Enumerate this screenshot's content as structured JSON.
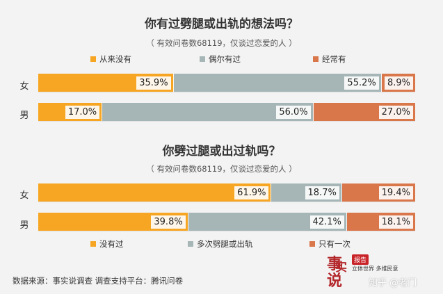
{
  "charts": [
    {
      "title": "你有过劈腿或出轨的想法吗？",
      "subtitle": "（ 有效问卷数68119，仅谈过恋爱的人 ）",
      "legend": [
        "从来没有",
        "偶尔有过",
        "经常有"
      ]
    },
    {
      "title": "你劈过腿或出过轨吗？",
      "subtitle": "（ 有效问卷数68119，仅谈过恋爱的人 ）",
      "legend": [
        "没有过",
        "多次劈腿或出轨",
        "只有一次"
      ]
    }
  ],
  "colors": {
    "series1": "#f6a623",
    "series2": "#a6b6b7",
    "series3": "#d9774a"
  },
  "chart_data": [
    {
      "type": "bar",
      "orientation": "horizontal",
      "stacked": true,
      "title": "你有过劈腿或出轨的想法吗？",
      "subtitle": "（ 有效问卷数68119，仅谈过恋爱的人 ）",
      "categories": [
        "女",
        "男"
      ],
      "series": [
        {
          "name": "从来没有",
          "values": [
            35.9,
            17.0
          ],
          "labels": [
            "35.9%",
            "17.0%"
          ]
        },
        {
          "name": "偶尔有过",
          "values": [
            55.2,
            56.0
          ],
          "labels": [
            "55.2%",
            "56.0%"
          ]
        },
        {
          "name": "经常有",
          "values": [
            8.9,
            27.0
          ],
          "labels": [
            "8.9%",
            "27.0%"
          ]
        }
      ],
      "legend_position": "top"
    },
    {
      "type": "bar",
      "orientation": "horizontal",
      "stacked": true,
      "title": "你劈过腿或出过轨吗？",
      "subtitle": "（ 有效问卷数68119，仅谈过恋爱的人 ）",
      "categories": [
        "女",
        "男"
      ],
      "series": [
        {
          "name": "没有过",
          "values": [
            61.9,
            39.8
          ],
          "labels": [
            "61.9%",
            "39.8%"
          ]
        },
        {
          "name": "多次劈腿或出轨",
          "values": [
            18.7,
            42.1
          ],
          "labels": [
            "18.7%",
            "42.1%"
          ]
        },
        {
          "name": "只有一次",
          "values": [
            19.4,
            18.1
          ],
          "labels": [
            "19.4%",
            "18.1%"
          ]
        }
      ],
      "legend_position": "bottom"
    }
  ],
  "footer": "数据来源：事实说调查  调查支持平台：腾讯问卷",
  "logo": {
    "big1": "事",
    "big2": "实",
    "big3": "说",
    "tag": "报告",
    "slogan": "立体世界 多维民意"
  },
  "watermark": "知乎 @老门"
}
